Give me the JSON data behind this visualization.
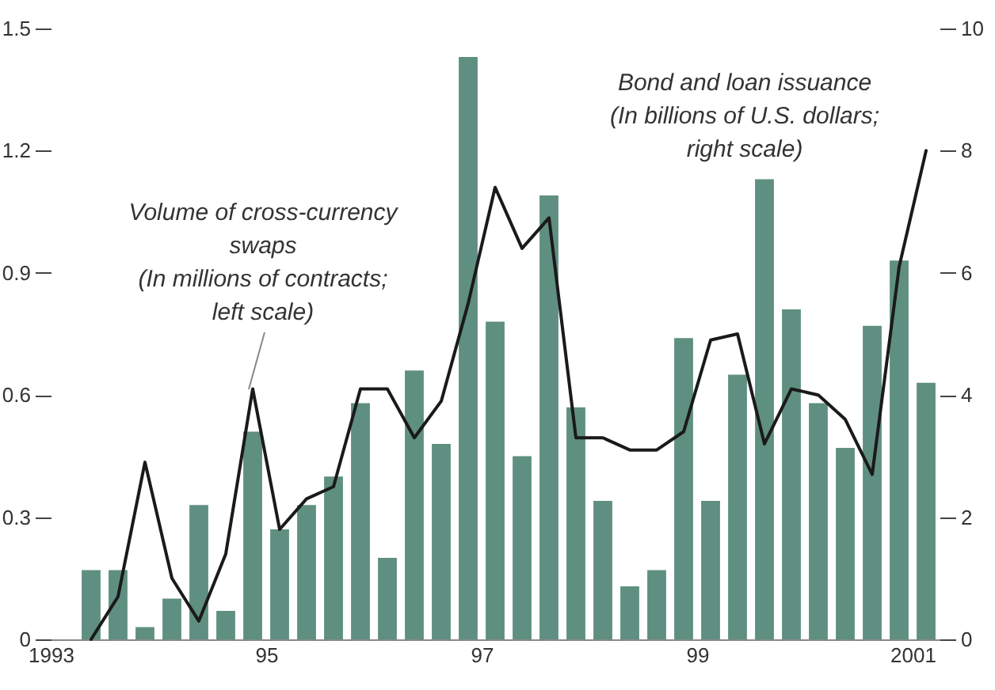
{
  "chart_data": {
    "type": "bar",
    "x": [
      1993.375,
      1993.625,
      1993.875,
      1994.125,
      1994.375,
      1994.625,
      1994.875,
      1995.125,
      1995.375,
      1995.625,
      1995.875,
      1996.125,
      1996.375,
      1996.625,
      1996.875,
      1997.125,
      1997.375,
      1997.625,
      1997.875,
      1998.125,
      1998.375,
      1998.625,
      1998.875,
      1999.125,
      1999.375,
      1999.625,
      1999.875,
      2000.125,
      2000.375,
      2000.625,
      2000.875,
      2001.125
    ],
    "xlim": [
      1993,
      2001.25
    ],
    "xticks": [
      1993,
      {
        "value": 1995,
        "label": "95"
      },
      {
        "value": 1997,
        "label": "97"
      },
      {
        "value": 1999,
        "label": "99"
      },
      2001
    ],
    "ylim": [
      0,
      1.5
    ],
    "yticks": [
      0,
      0.3,
      0.6,
      0.9,
      1.2,
      1.5
    ],
    "y2lim": [
      0,
      10
    ],
    "y2ticks": [
      0,
      2,
      4,
      6,
      8,
      10
    ],
    "series": [
      {
        "color": "#5f8f80",
        "values": [
          0.17,
          0.17,
          0.03,
          0.1,
          0.33,
          0.07,
          0.51,
          0.27,
          0.33,
          0.4,
          0.58,
          0.2,
          0.66,
          0.48,
          1.43,
          0.78,
          0.45,
          1.09,
          0.57,
          0.34,
          0.13,
          0.17,
          0.74,
          0.34,
          0.65,
          1.13,
          0.81,
          0.58,
          0.47,
          0.77,
          0.93,
          0.63
        ]
      },
      {
        "type": "line",
        "axis": "y2",
        "color": "#1a1a1a",
        "values": [
          0,
          0.7,
          2.9,
          1.0,
          0.3,
          1.4,
          4.1,
          1.8,
          2.3,
          2.5,
          4.1,
          4.1,
          3.3,
          3.9,
          5.5,
          7.4,
          6.4,
          6.9,
          3.3,
          3.3,
          3.1,
          3.1,
          3.4,
          4.9,
          5.0,
          3.2,
          4.1,
          4.0,
          3.6,
          2.7,
          6.1,
          8.0
        ]
      }
    ],
    "annotations": [
      "Volume of cross-currency\nswaps\n(In millions of contracts;\nleft scale)",
      "Bond and loan issuance\n(In billions of U.S. dollars;\nright scale)"
    ]
  }
}
